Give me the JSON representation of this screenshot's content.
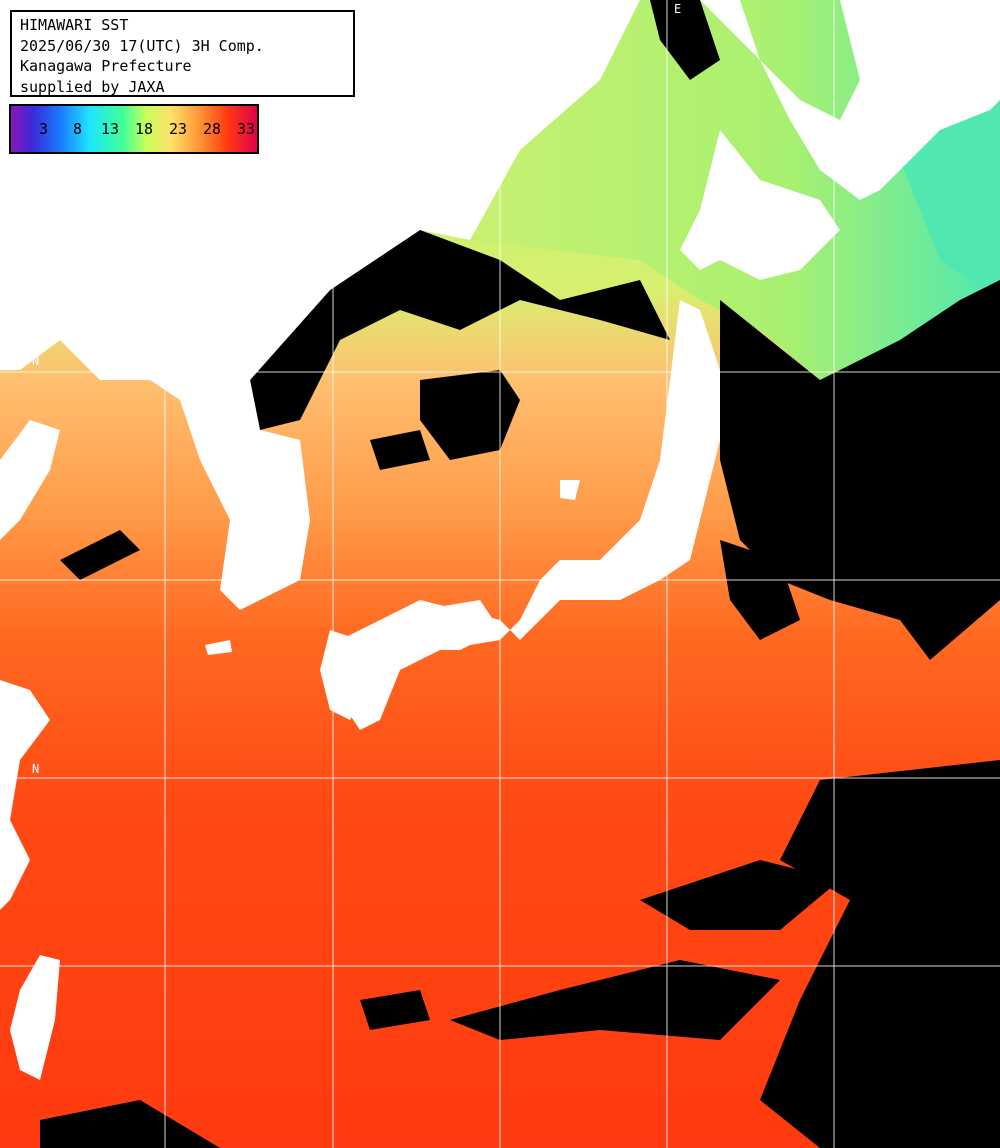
{
  "title_box": {
    "line1": "HIMAWARI SST",
    "line2": "2025/06/30 17(UTC) 3H Comp.",
    "line3": "Kanagawa Prefecture",
    "line4": "supplied by JAXA"
  },
  "legend": {
    "ticks": [
      "3",
      "8",
      "13",
      "18",
      "23",
      "28",
      "33"
    ]
  },
  "grid_labels": {
    "lat_upper": "N",
    "lat_lower": "N",
    "lon_top": "E"
  },
  "colors": {
    "land": "#ffffff",
    "cloud": "#000000",
    "warm_sea": "#ff4a10",
    "mid_sea": "#ffa850",
    "cool_sea": "#a8f070",
    "cold_sea": "#50e8b0",
    "grid": "#ffffff"
  }
}
